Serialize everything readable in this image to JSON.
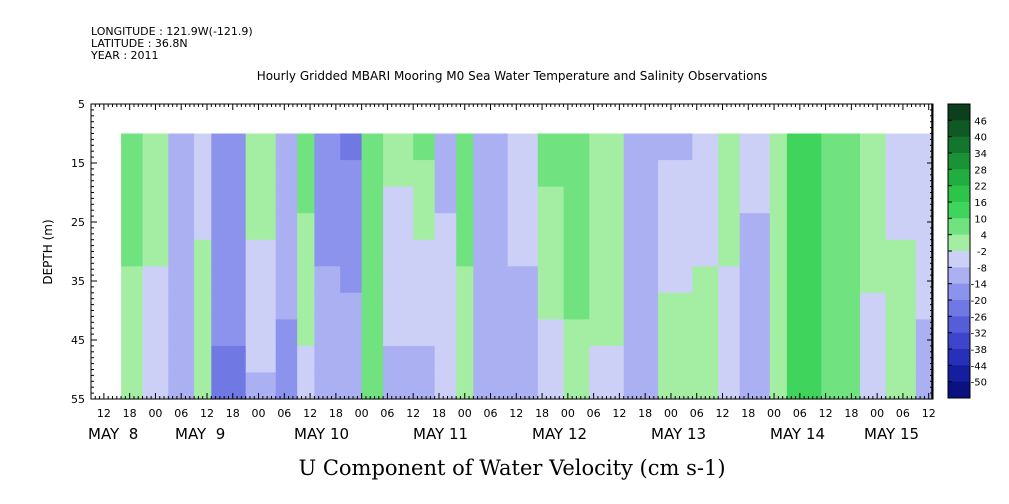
{
  "header": {
    "longitude": "LONGITUDE : 121.9W(-121.9)",
    "latitude": "LATITUDE : 36.8N",
    "year": "YEAR : 2011"
  },
  "chart_data": {
    "type": "heatmap",
    "title": "Hourly Gridded MBARI Mooring M0 Sea Water Temperature and Salinity Observations",
    "xlabel": "U Component of Water Velocity (cm s-1)",
    "ylabel": "DEPTH (m)",
    "ylim": [
      55,
      5
    ],
    "xlim": [
      "May 7 2011 09:00",
      "May 15 2011 13:00"
    ],
    "data_extent": {
      "x": [
        "May 7 2011 16:00",
        "May 15 2011 13:00"
      ],
      "depth": [
        10,
        55
      ]
    },
    "y_ticks": [
      "5",
      "15",
      "25",
      "35",
      "45",
      "55"
    ],
    "x_hour_ticks": [
      "12",
      "18",
      "00",
      "06",
      "12",
      "18",
      "00",
      "06",
      "12",
      "18",
      "00",
      "06",
      "12",
      "18",
      "00",
      "06",
      "12",
      "18",
      "00",
      "06",
      "12",
      "18",
      "00",
      "06",
      "12",
      "18",
      "00",
      "06",
      "12",
      "18",
      "00",
      "06",
      "12"
    ],
    "x_day_labels": [
      "MAY  8",
      "MAY  9",
      "MAY 10",
      "MAY 11",
      "MAY 12",
      "MAY 13",
      "MAY 14",
      "MAY 15"
    ],
    "colorbar": {
      "levels": [
        "46",
        "40",
        "34",
        "28",
        "22",
        "16",
        "10",
        "4",
        "-2",
        "-8",
        "-14",
        "-20",
        "-26",
        "-32",
        "-38",
        "-44",
        "-50"
      ],
      "colors": [
        "#0c3f1c",
        "#0f5a24",
        "#14762e",
        "#1a9337",
        "#22ad40",
        "#2cc54a",
        "#3fd45c",
        "#70e27f",
        "#a4eea4",
        "#ccd0f6",
        "#aab0f2",
        "#8c93ec",
        "#7078e4",
        "#555ed9",
        "#3c45cc",
        "#2630b8",
        "#141e9e",
        "#0a1280"
      ]
    },
    "bands": [
      {
        "from": "May 7 16:00",
        "to": "May 7 21:00",
        "shallow": 6,
        "deep": 2
      },
      {
        "from": "May 7 21:00",
        "to": "May 8 03:00",
        "shallow": 3,
        "deep": -7
      },
      {
        "from": "May 8 03:00",
        "to": "May 8 09:00",
        "shallow": -9,
        "deep": -13
      },
      {
        "from": "May 8 09:00",
        "to": "May 8 13:00",
        "shallow": -5,
        "deep": 3
      },
      {
        "from": "May 8 13:00",
        "to": "May 8 21:00",
        "shallow": -14,
        "deep": -22
      },
      {
        "from": "May 8 21:00",
        "to": "May 9 04:00",
        "shallow": 4,
        "deep": -10
      },
      {
        "from": "May 9 04:00",
        "to": "May 9 09:00",
        "shallow": -10,
        "deep": -16
      },
      {
        "from": "May 9 09:00",
        "to": "May 9 13:00",
        "shallow": 8,
        "deep": -4
      },
      {
        "from": "May 9 13:00",
        "to": "May 9 19:00",
        "shallow": -16,
        "deep": -12
      },
      {
        "from": "May 9 19:00",
        "to": "May 10 00:00",
        "shallow": -22,
        "deep": -8
      },
      {
        "from": "May 10 00:00",
        "to": "May 10 05:00",
        "shallow": 6,
        "deep": 4
      },
      {
        "from": "May 10 05:00",
        "to": "May 10 12:00",
        "shallow": 0,
        "deep": -10
      },
      {
        "from": "May 10 12:00",
        "to": "May 10 17:00",
        "shallow": 6,
        "deep": -12
      },
      {
        "from": "May 10 17:00",
        "to": "May 10 22:00",
        "shallow": -10,
        "deep": -4
      },
      {
        "from": "May 10 22:00",
        "to": "May 11 02:00",
        "shallow": 6,
        "deep": 2
      },
      {
        "from": "May 11 02:00",
        "to": "May 11 10:00",
        "shallow": -8,
        "deep": -14
      },
      {
        "from": "May 11 10:00",
        "to": "May 11 17:00",
        "shallow": -4,
        "deep": -12
      },
      {
        "from": "May 11 17:00",
        "to": "May 11 23:00",
        "shallow": 6,
        "deep": -6
      },
      {
        "from": "May 11 23:00",
        "to": "May 12 05:00",
        "shallow": 8,
        "deep": 2
      },
      {
        "from": "May 12 05:00",
        "to": "May 12 13:00",
        "shallow": 4,
        "deep": -4
      },
      {
        "from": "May 12 13:00",
        "to": "May 12 21:00",
        "shallow": -10,
        "deep": -14
      },
      {
        "from": "May 12 21:00",
        "to": "May 13 05:00",
        "shallow": -10,
        "deep": 4
      },
      {
        "from": "May 13 05:00",
        "to": "May 13 11:00",
        "shallow": -6,
        "deep": 2
      },
      {
        "from": "May 13 11:00",
        "to": "May 13 16:00",
        "shallow": 4,
        "deep": -8
      },
      {
        "from": "May 13 16:00",
        "to": "May 13 23:00",
        "shallow": -6,
        "deep": -12
      },
      {
        "from": "May 13 23:00",
        "to": "May 14 03:00",
        "shallow": -2,
        "deep": 2
      },
      {
        "from": "May 14 03:00",
        "to": "May 14 11:00",
        "shallow": 14,
        "deep": 16
      },
      {
        "from": "May 14 11:00",
        "to": "May 14 20:00",
        "shallow": 4,
        "deep": 6
      },
      {
        "from": "May 14 20:00",
        "to": "May 15 02:00",
        "shallow": 4,
        "deep": -6
      },
      {
        "from": "May 15 02:00",
        "to": "May 15 09:00",
        "shallow": -6,
        "deep": 4
      },
      {
        "from": "May 15 09:00",
        "to": "May 15 13:00",
        "shallow": -4,
        "deep": -10
      }
    ]
  }
}
